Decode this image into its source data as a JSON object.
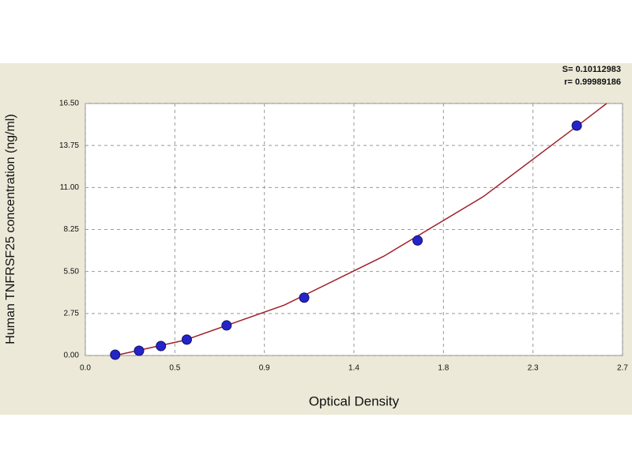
{
  "chart_data": {
    "type": "scatter",
    "x_label": "Optical Density",
    "y_label": "Human TNFRSF25 concentration (ng/ml)",
    "annotations": [
      "S= 0.10112983",
      "r= 0.99989186"
    ],
    "xlim": [
      0,
      2.7
    ],
    "xticks": [
      {
        "value": 0,
        "label": "0.0"
      },
      {
        "value": 0.45,
        "label": "0.5"
      },
      0.9,
      {
        "value": 1.35,
        "label": "1.4"
      },
      1.8,
      {
        "value": 2.25,
        "label": "2.3"
      },
      2.7
    ],
    "ylim": [
      0,
      16.5
    ],
    "yticks": [
      {
        "value": 0,
        "label": "0.00"
      },
      2.75,
      {
        "value": 5.5,
        "label": "5.50"
      },
      8.25,
      {
        "value": 11,
        "label": "11.00"
      },
      13.75,
      {
        "value": 16.5,
        "label": "16.50"
      }
    ],
    "grid": true,
    "series": [
      {
        "mode": "line",
        "color": "#a0202a",
        "x": [
          0.15,
          0.5,
          1.0,
          1.5,
          2.0,
          2.5,
          2.62
        ],
        "values": [
          0.0,
          1.0,
          3.3,
          6.5,
          10.4,
          15.3,
          16.5
        ]
      },
      {
        "mode": "markers",
        "color": "#2424c8",
        "x": [
          0.15,
          0.27,
          0.38,
          0.51,
          0.71,
          1.1,
          1.67,
          2.47
        ],
        "values": [
          0.05,
          0.31,
          0.62,
          1.04,
          1.97,
          3.79,
          7.53,
          15.05
        ]
      }
    ]
  }
}
